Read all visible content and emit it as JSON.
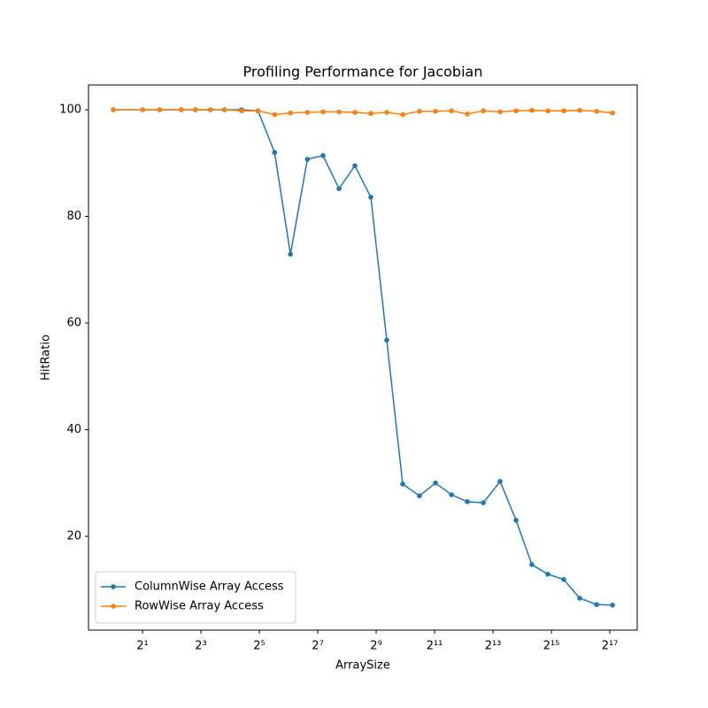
{
  "chart_data": {
    "type": "line",
    "title": "Profiling Performance for Jacobian",
    "x_label": "ArraySize",
    "y_label": "HitRatio",
    "xscale": "log",
    "xbase": 2,
    "x": [
      1,
      2,
      3,
      5,
      7,
      10,
      14,
      21,
      31,
      46,
      67,
      100,
      145,
      212,
      309,
      451,
      658,
      961,
      1430,
      2090,
      3060,
      4450,
      6510,
      9690,
      14150,
      20600,
      30100,
      43900,
      64100,
      95800,
      139700
    ],
    "series": [
      {
        "name": "ColumnWise Array Access",
        "color": "#1f77b4",
        "values": [
          100,
          100,
          100,
          100,
          100,
          100,
          100,
          100,
          99.8,
          92.0,
          72.9,
          90.7,
          91.4,
          85.2,
          89.5,
          83.6,
          56.8,
          29.8,
          27.6,
          30.0,
          27.8,
          26.5,
          26.3,
          30.3,
          23.0,
          14.7,
          12.9,
          11.9,
          8.4,
          7.2,
          7.1
        ]
      },
      {
        "name": "RowWise Array Access",
        "color": "#ff7f0e",
        "values": [
          100,
          100,
          100,
          100,
          100,
          100,
          100,
          99.8,
          99.8,
          99.1,
          99.4,
          99.5,
          99.6,
          99.6,
          99.5,
          99.3,
          99.5,
          99.1,
          99.7,
          99.7,
          99.8,
          99.2,
          99.8,
          99.6,
          99.8,
          99.9,
          99.8,
          99.8,
          99.9,
          99.7,
          99.4
        ]
      }
    ],
    "xlim": [
      0.555,
      251000
    ],
    "xticks": [
      {
        "value": 2,
        "label": "2¹"
      },
      {
        "value": 8,
        "label": "2³"
      },
      {
        "value": 32,
        "label": "2⁵"
      },
      {
        "value": 128,
        "label": "2⁷"
      },
      {
        "value": 512,
        "label": "2⁹"
      },
      {
        "value": 2048,
        "label": "2¹¹"
      },
      {
        "value": 8192,
        "label": "2¹³"
      },
      {
        "value": 32768,
        "label": "2¹⁵"
      },
      {
        "value": 131072,
        "label": "2¹⁷"
      }
    ],
    "ylim": [
      2.41,
      104.65
    ],
    "yticks": [
      20,
      40,
      60,
      80,
      100
    ],
    "grid": false,
    "legend": "lower left",
    "markers": true
  }
}
